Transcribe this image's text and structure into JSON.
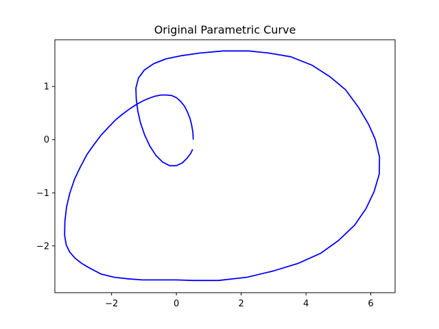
{
  "chart_data": {
    "type": "line",
    "title": "Original Parametric Curve",
    "xlabel": "",
    "ylabel": "",
    "xlim": [
      -3.75,
      6.75
    ],
    "ylim": [
      -2.88,
      1.88
    ],
    "xticks": [
      -2,
      0,
      2,
      4,
      6
    ],
    "yticks": [
      -2,
      -1,
      0,
      1
    ],
    "xtick_labels": [
      "−2",
      "0",
      "2",
      "4",
      "6"
    ],
    "ytick_labels": [
      "−2",
      "−1",
      "0",
      "1"
    ],
    "grid": false,
    "series": [
      {
        "color": "#0000ff",
        "points": [
          [
            0.52,
            0.0
          ],
          [
            0.51,
            0.14
          ],
          [
            0.47,
            0.28
          ],
          [
            0.42,
            0.4
          ],
          [
            0.34,
            0.52
          ],
          [
            0.25,
            0.63
          ],
          [
            0.13,
            0.72
          ],
          [
            0.0,
            0.79
          ],
          [
            -0.14,
            0.83
          ],
          [
            -0.31,
            0.84
          ],
          [
            -0.48,
            0.84
          ],
          [
            -0.65,
            0.82
          ],
          [
            -0.84,
            0.78
          ],
          [
            -1.03,
            0.73
          ],
          [
            -1.24,
            0.66
          ],
          [
            -1.44,
            0.58
          ],
          [
            -1.66,
            0.48
          ],
          [
            -1.88,
            0.37
          ],
          [
            -2.1,
            0.23
          ],
          [
            -2.33,
            0.08
          ],
          [
            -2.54,
            -0.09
          ],
          [
            -2.76,
            -0.28
          ],
          [
            -2.96,
            -0.51
          ],
          [
            -3.14,
            -0.74
          ],
          [
            -3.29,
            -1.01
          ],
          [
            -3.39,
            -1.27
          ],
          [
            -3.44,
            -1.54
          ],
          [
            -3.45,
            -1.8
          ],
          [
            -3.4,
            -1.98
          ],
          [
            -3.3,
            -2.11
          ],
          [
            -3.13,
            -2.23
          ],
          [
            -2.92,
            -2.33
          ],
          [
            -2.67,
            -2.42
          ],
          [
            -2.32,
            -2.53
          ],
          [
            -1.92,
            -2.59
          ],
          [
            -1.49,
            -2.62
          ],
          [
            -1.05,
            -2.64
          ],
          [
            -0.6,
            -2.64
          ],
          [
            0.0,
            -2.64
          ],
          [
            0.52,
            -2.65
          ],
          [
            1.3,
            -2.65
          ],
          [
            2.18,
            -2.59
          ],
          [
            3.0,
            -2.47
          ],
          [
            3.75,
            -2.33
          ],
          [
            4.45,
            -2.14
          ],
          [
            5.0,
            -1.9
          ],
          [
            5.5,
            -1.61
          ],
          [
            5.85,
            -1.3
          ],
          [
            6.1,
            -0.98
          ],
          [
            6.26,
            -0.65
          ],
          [
            6.27,
            -0.33
          ],
          [
            6.14,
            0.0
          ],
          [
            5.93,
            0.29
          ],
          [
            5.62,
            0.61
          ],
          [
            5.22,
            0.94
          ],
          [
            4.75,
            1.18
          ],
          [
            4.19,
            1.4
          ],
          [
            3.53,
            1.56
          ],
          [
            2.85,
            1.63
          ],
          [
            2.23,
            1.67
          ],
          [
            1.45,
            1.67
          ],
          [
            0.73,
            1.63
          ],
          [
            0.15,
            1.58
          ],
          [
            -0.32,
            1.52
          ],
          [
            -0.7,
            1.43
          ],
          [
            -0.99,
            1.31
          ],
          [
            -1.17,
            1.16
          ],
          [
            -1.25,
            0.97
          ],
          [
            -1.24,
            0.77
          ],
          [
            -1.19,
            0.54
          ],
          [
            -1.11,
            0.32
          ],
          [
            -0.98,
            0.09
          ],
          [
            -0.82,
            -0.12
          ],
          [
            -0.64,
            -0.29
          ],
          [
            -0.43,
            -0.42
          ],
          [
            -0.21,
            -0.49
          ],
          [
            0.0,
            -0.49
          ],
          [
            0.18,
            -0.44
          ],
          [
            0.33,
            -0.35
          ],
          [
            0.45,
            -0.25
          ],
          [
            0.5,
            -0.18
          ]
        ]
      }
    ]
  }
}
